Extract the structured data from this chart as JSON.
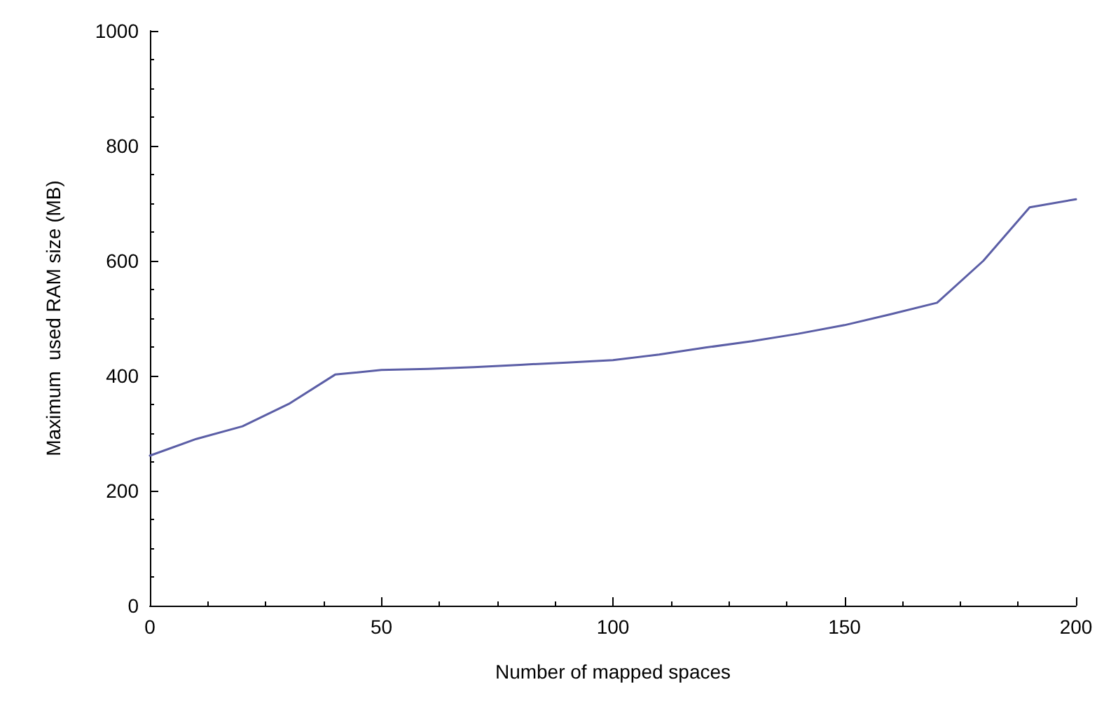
{
  "chart_data": {
    "type": "line",
    "xlabel": "Number of mapped spaces",
    "ylabel": "Maximum  used RAM size (MB)",
    "x": [
      0,
      10,
      20,
      30,
      40,
      50,
      60,
      70,
      80,
      90,
      100,
      110,
      120,
      130,
      140,
      150,
      160,
      170,
      180,
      190,
      200
    ],
    "series": [
      {
        "color": "#5b5ea6",
        "values": [
          261,
          290,
          312,
          351,
          402,
          410,
          412,
          415,
          419,
          423,
          427,
          437,
          449,
          460,
          473,
          488,
          507,
          527,
          600,
          693,
          707
        ]
      }
    ],
    "xlim": [
      0,
      200
    ],
    "xticks": [
      0,
      50,
      100,
      150,
      200
    ],
    "ylim": [
      0,
      1000
    ],
    "yticks": [
      0,
      200,
      400,
      600,
      800,
      1000
    ],
    "grid": false,
    "marker": "none",
    "line_style": "solid"
  }
}
